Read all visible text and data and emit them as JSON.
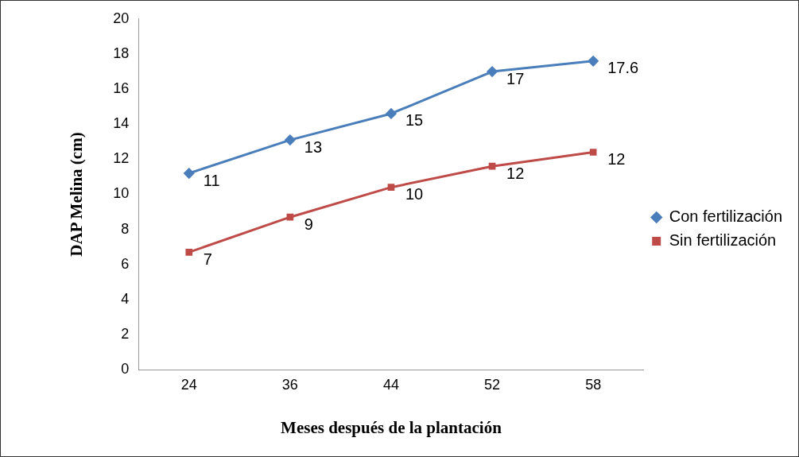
{
  "chart_data": {
    "type": "line",
    "xlabel": "Meses después de la plantación",
    "ylabel": "DAP Melina (cm)",
    "categories": [
      "24",
      "36",
      "44",
      "52",
      "58"
    ],
    "ylim": [
      0,
      20
    ],
    "yticks": [
      0,
      2,
      4,
      6,
      8,
      10,
      12,
      14,
      16,
      18,
      20
    ],
    "grid": false,
    "legend": "right",
    "line_style": "solid",
    "series": [
      {
        "name": "Con fertilización",
        "color": "#4a7ebb",
        "marker": "diamond",
        "values": [
          11.2,
          13.1,
          14.6,
          17,
          17.6
        ],
        "value_labels": [
          "11",
          "13",
          "15",
          "17",
          "17.6"
        ]
      },
      {
        "name": "Sin fertilización",
        "color": "#be4b48",
        "marker": "square",
        "values": [
          6.7,
          8.7,
          10.4,
          11.6,
          12.4
        ],
        "value_labels": [
          "7",
          "9",
          "10",
          "12",
          "12"
        ]
      }
    ]
  }
}
